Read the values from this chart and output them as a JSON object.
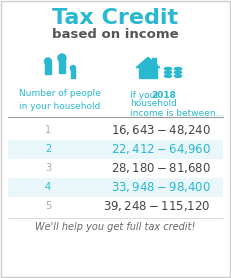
{
  "title_line1": "Tax Credit",
  "title_line2": "based on income",
  "title_color": "#29b8d0",
  "subtitle_color": "#555555",
  "header_color": "#29b8d0",
  "col1_header": "Number of people\nin your household",
  "col2_header_part1": "If your ",
  "col2_header_year": "2018",
  "col2_header_part2": " household\nincome is between...",
  "rows": [
    {
      "num": "1",
      "range": "$16,643 - $48,240",
      "highlight": false
    },
    {
      "num": "2",
      "range": "$22,412 - $64,960",
      "highlight": true
    },
    {
      "num": "3",
      "range": "$28,180 - $81,680",
      "highlight": false
    },
    {
      "num": "4",
      "range": "$33,948 - $98,400",
      "highlight": true
    },
    {
      "num": "5",
      "range": "$39,248 - $115,120",
      "highlight": false
    }
  ],
  "highlight_bg": "#eaf7fa",
  "highlight_text_color": "#29b8d0",
  "normal_text_color": "#444444",
  "row_num_normal_color": "#aaaaaa",
  "row_num_highlight_color": "#29b8d0",
  "footer": "We'll help you get full tax credit!",
  "footer_color": "#666666",
  "bg_color": "#ffffff",
  "border_color": "#cccccc",
  "separator_color": "#999999",
  "teal": "#29b8d0",
  "fig_width": 2.31,
  "fig_height": 2.78,
  "dpi": 100
}
